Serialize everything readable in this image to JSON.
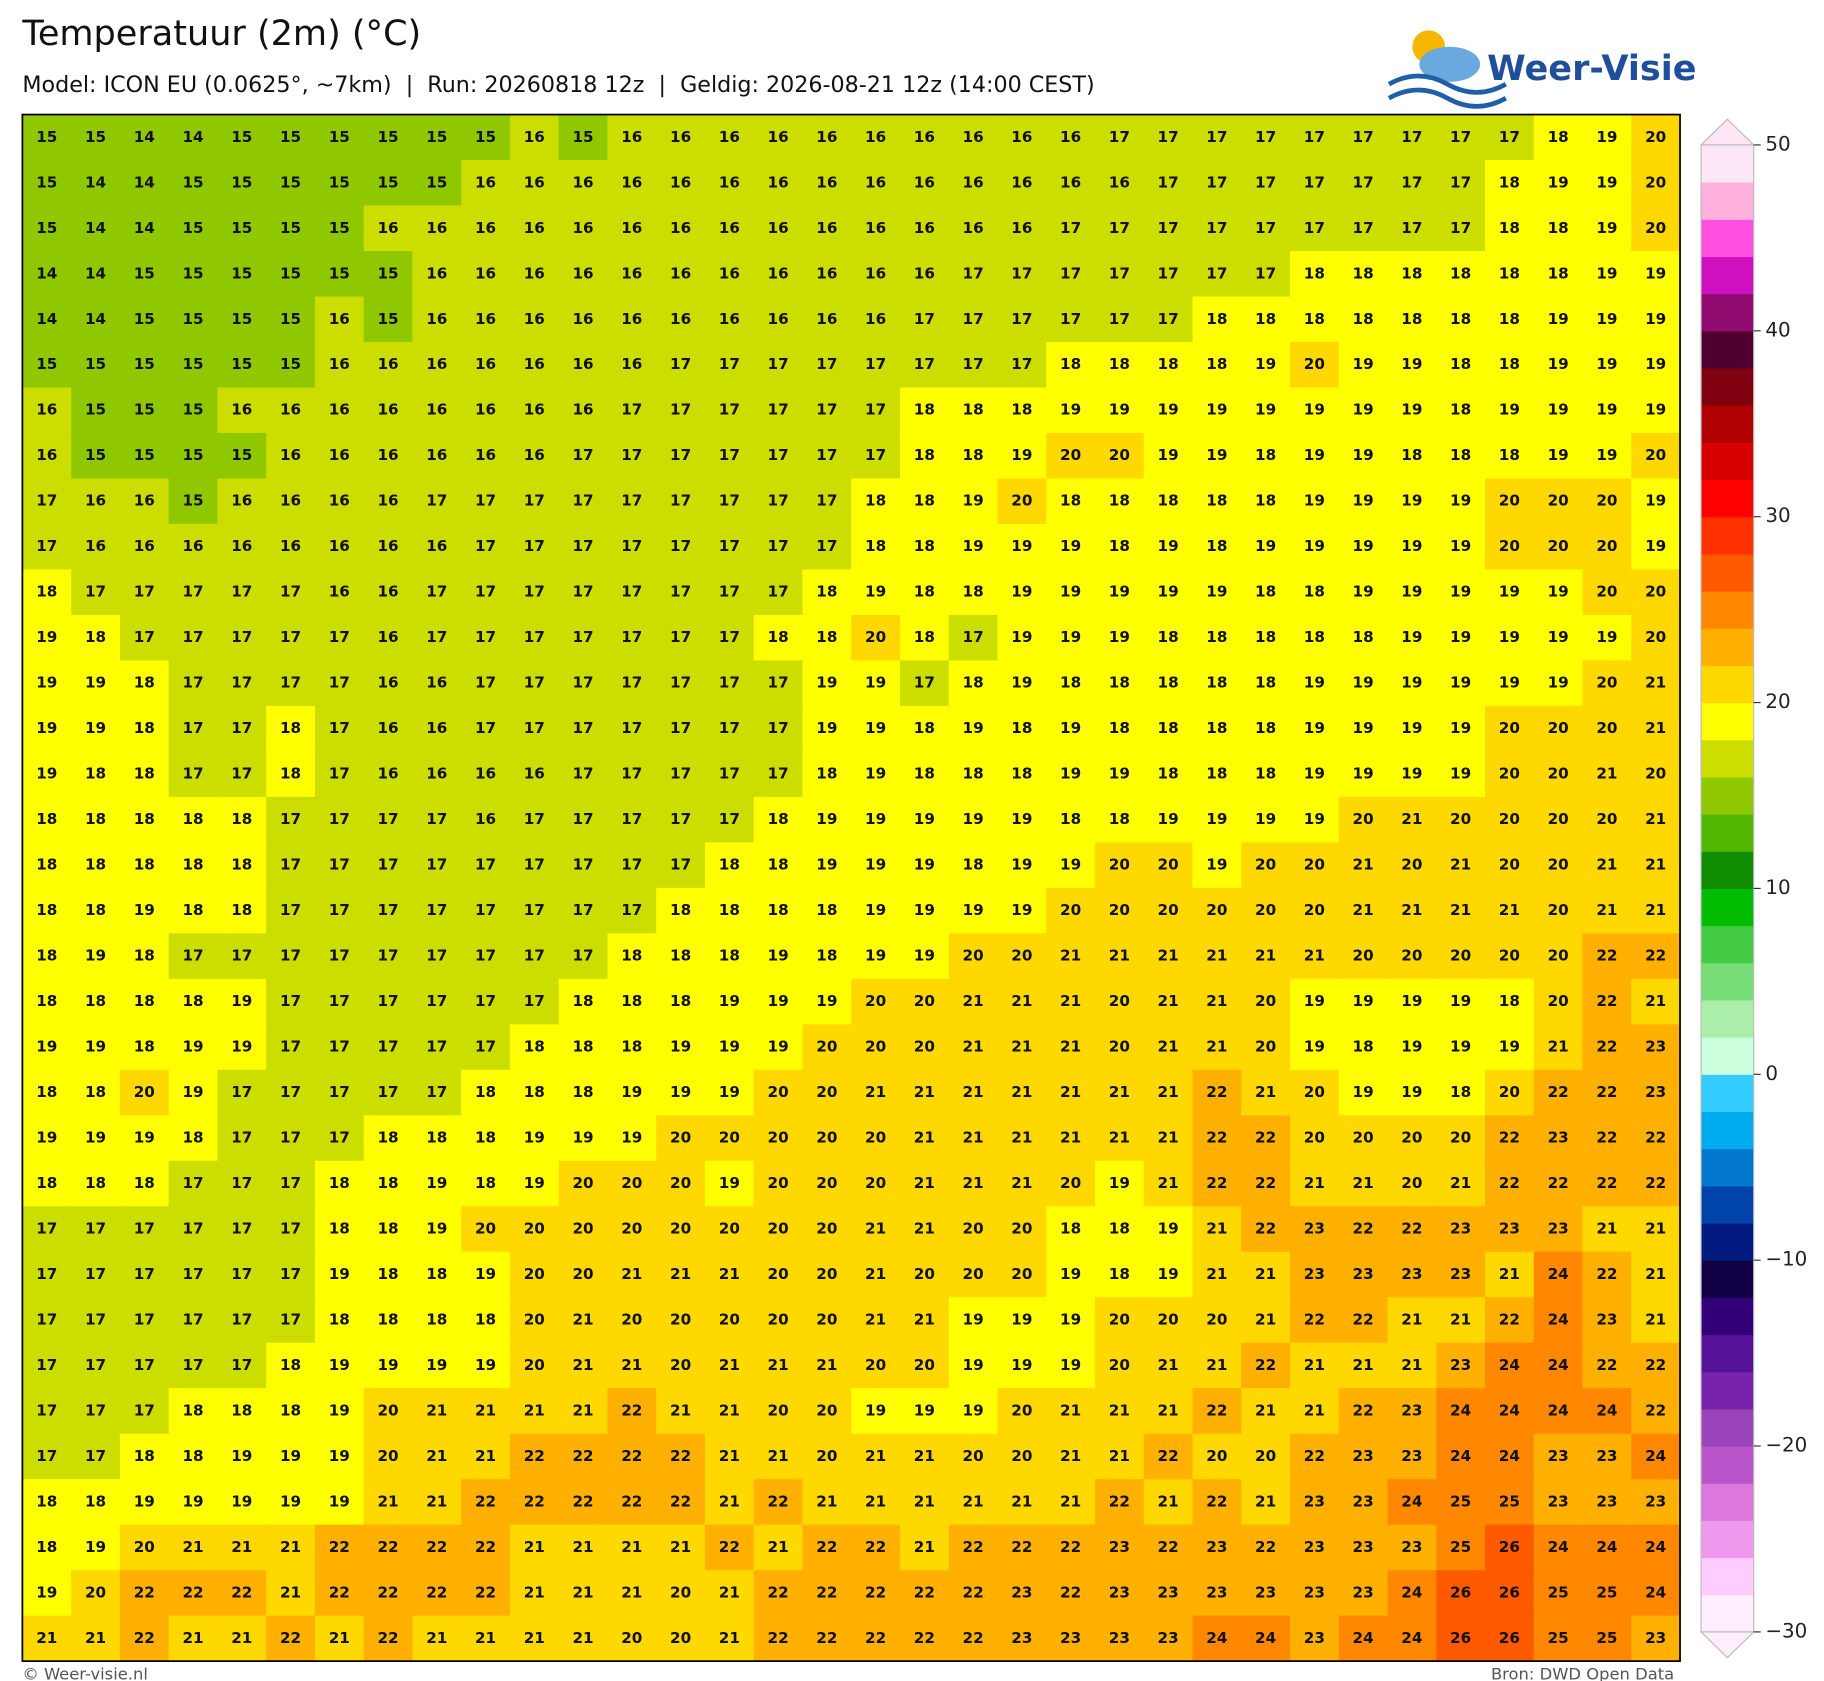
{
  "title": "Temperatuur (2m) (°C)",
  "subtitle": "Model: ICON EU (0.0625°, ~7km)  |  Run: 20260818 12z  |  Geldig: 2026-08-21 12z (14:00 CEST)",
  "logo": "Weer-Visie",
  "footer_left": "© Weer-visie.nl",
  "footer_right": "Bron: DWD Open Data",
  "map": {
    "rows": [
      [
        15,
        15,
        14,
        14,
        15,
        15,
        15,
        15,
        15,
        15,
        16,
        15,
        16,
        16,
        16,
        16,
        16,
        16,
        16,
        16,
        16,
        16,
        17,
        17,
        17,
        17,
        17,
        17,
        17,
        17,
        17,
        18,
        19,
        20
      ],
      [
        15,
        14,
        14,
        15,
        15,
        15,
        15,
        15,
        15,
        16,
        16,
        16,
        16,
        16,
        16,
        16,
        16,
        16,
        16,
        16,
        16,
        16,
        16,
        17,
        17,
        17,
        17,
        17,
        17,
        17,
        18,
        19,
        19,
        20
      ],
      [
        15,
        14,
        14,
        15,
        15,
        15,
        15,
        16,
        16,
        16,
        16,
        16,
        16,
        16,
        16,
        16,
        16,
        16,
        16,
        16,
        16,
        17,
        17,
        17,
        17,
        17,
        17,
        17,
        17,
        17,
        18,
        18,
        19,
        20
      ],
      [
        14,
        14,
        15,
        15,
        15,
        15,
        15,
        15,
        16,
        16,
        16,
        16,
        16,
        16,
        16,
        16,
        16,
        16,
        16,
        17,
        17,
        17,
        17,
        17,
        17,
        17,
        18,
        18,
        18,
        18,
        18,
        18,
        19,
        19
      ],
      [
        14,
        14,
        15,
        15,
        15,
        15,
        16,
        15,
        16,
        16,
        16,
        16,
        16,
        16,
        16,
        16,
        16,
        16,
        17,
        17,
        17,
        17,
        17,
        17,
        18,
        18,
        18,
        18,
        18,
        18,
        18,
        19,
        19,
        19
      ],
      [
        15,
        15,
        15,
        15,
        15,
        15,
        16,
        16,
        16,
        16,
        16,
        16,
        16,
        17,
        17,
        17,
        17,
        17,
        17,
        17,
        17,
        18,
        18,
        18,
        18,
        19,
        20,
        19,
        19,
        18,
        18,
        19,
        19,
        19
      ],
      [
        16,
        15,
        15,
        15,
        16,
        16,
        16,
        16,
        16,
        16,
        16,
        16,
        17,
        17,
        17,
        17,
        17,
        17,
        18,
        18,
        18,
        19,
        19,
        19,
        19,
        19,
        19,
        19,
        19,
        18,
        19,
        19,
        19,
        19
      ],
      [
        16,
        15,
        15,
        15,
        15,
        16,
        16,
        16,
        16,
        16,
        16,
        17,
        17,
        17,
        17,
        17,
        17,
        17,
        18,
        18,
        19,
        20,
        20,
        19,
        19,
        18,
        19,
        19,
        18,
        18,
        18,
        19,
        19,
        20
      ],
      [
        17,
        16,
        16,
        15,
        16,
        16,
        16,
        16,
        17,
        17,
        17,
        17,
        17,
        17,
        17,
        17,
        17,
        18,
        18,
        19,
        20,
        18,
        18,
        18,
        18,
        18,
        19,
        19,
        19,
        19,
        20,
        20,
        20,
        19
      ],
      [
        17,
        16,
        16,
        16,
        16,
        16,
        16,
        16,
        16,
        17,
        17,
        17,
        17,
        17,
        17,
        17,
        17,
        18,
        18,
        19,
        19,
        19,
        18,
        19,
        18,
        19,
        19,
        19,
        19,
        19,
        20,
        20,
        20,
        19
      ],
      [
        18,
        17,
        17,
        17,
        17,
        17,
        16,
        16,
        17,
        17,
        17,
        17,
        17,
        17,
        17,
        17,
        18,
        19,
        18,
        18,
        19,
        19,
        19,
        19,
        19,
        18,
        18,
        19,
        19,
        19,
        19,
        19,
        20,
        20
      ],
      [
        19,
        18,
        17,
        17,
        17,
        17,
        17,
        16,
        17,
        17,
        17,
        17,
        17,
        17,
        17,
        18,
        18,
        20,
        18,
        17,
        19,
        19,
        19,
        18,
        18,
        18,
        18,
        18,
        19,
        19,
        19,
        19,
        19,
        20
      ],
      [
        19,
        19,
        18,
        17,
        17,
        17,
        17,
        16,
        16,
        17,
        17,
        17,
        17,
        17,
        17,
        17,
        19,
        19,
        17,
        18,
        19,
        18,
        18,
        18,
        18,
        18,
        19,
        19,
        19,
        19,
        19,
        19,
        20,
        21
      ],
      [
        19,
        19,
        18,
        17,
        17,
        18,
        17,
        16,
        16,
        17,
        17,
        17,
        17,
        17,
        17,
        17,
        19,
        19,
        18,
        19,
        18,
        19,
        18,
        18,
        18,
        18,
        19,
        19,
        19,
        19,
        20,
        20,
        20,
        21
      ],
      [
        19,
        18,
        18,
        17,
        17,
        18,
        17,
        16,
        16,
        16,
        16,
        17,
        17,
        17,
        17,
        17,
        18,
        19,
        18,
        18,
        18,
        19,
        19,
        18,
        18,
        18,
        19,
        19,
        19,
        19,
        20,
        20,
        21,
        20
      ],
      [
        18,
        18,
        18,
        18,
        18,
        17,
        17,
        17,
        17,
        16,
        17,
        17,
        17,
        17,
        17,
        18,
        19,
        19,
        19,
        19,
        19,
        18,
        18,
        19,
        19,
        19,
        19,
        20,
        21,
        20,
        20,
        20,
        20,
        21
      ],
      [
        18,
        18,
        18,
        18,
        18,
        17,
        17,
        17,
        17,
        17,
        17,
        17,
        17,
        17,
        18,
        18,
        19,
        19,
        19,
        18,
        19,
        19,
        20,
        20,
        19,
        20,
        20,
        21,
        20,
        21,
        20,
        20,
        21,
        21
      ],
      [
        18,
        18,
        19,
        18,
        18,
        17,
        17,
        17,
        17,
        17,
        17,
        17,
        17,
        18,
        18,
        18,
        18,
        19,
        19,
        19,
        19,
        20,
        20,
        20,
        20,
        20,
        20,
        21,
        21,
        21,
        21,
        20,
        21,
        21
      ],
      [
        18,
        19,
        18,
        17,
        17,
        17,
        17,
        17,
        17,
        17,
        17,
        17,
        18,
        18,
        18,
        19,
        18,
        19,
        19,
        20,
        20,
        21,
        21,
        21,
        21,
        21,
        21,
        20,
        20,
        20,
        20,
        20,
        22,
        22
      ],
      [
        18,
        18,
        18,
        18,
        19,
        17,
        17,
        17,
        17,
        17,
        17,
        18,
        18,
        18,
        19,
        19,
        19,
        20,
        20,
        21,
        21,
        21,
        20,
        21,
        21,
        20,
        19,
        19,
        19,
        19,
        18,
        20,
        22,
        21
      ],
      [
        19,
        19,
        18,
        19,
        19,
        17,
        17,
        17,
        17,
        17,
        18,
        18,
        18,
        19,
        19,
        19,
        20,
        20,
        20,
        21,
        21,
        21,
        20,
        21,
        21,
        20,
        19,
        18,
        19,
        19,
        19,
        21,
        22,
        23
      ],
      [
        18,
        18,
        20,
        19,
        17,
        17,
        17,
        17,
        17,
        18,
        18,
        18,
        19,
        19,
        19,
        20,
        20,
        21,
        21,
        21,
        21,
        21,
        21,
        21,
        22,
        21,
        20,
        19,
        19,
        18,
        20,
        22,
        22,
        23
      ],
      [
        19,
        19,
        19,
        18,
        17,
        17,
        17,
        18,
        18,
        18,
        19,
        19,
        19,
        20,
        20,
        20,
        20,
        20,
        21,
        21,
        21,
        21,
        21,
        21,
        22,
        22,
        20,
        20,
        20,
        20,
        22,
        23,
        22,
        22
      ],
      [
        18,
        18,
        18,
        17,
        17,
        17,
        18,
        18,
        19,
        18,
        19,
        20,
        20,
        20,
        19,
        20,
        20,
        20,
        21,
        21,
        21,
        20,
        19,
        21,
        22,
        22,
        21,
        21,
        20,
        21,
        22,
        22,
        22,
        22
      ],
      [
        17,
        17,
        17,
        17,
        17,
        17,
        18,
        18,
        19,
        20,
        20,
        20,
        20,
        20,
        20,
        20,
        20,
        21,
        21,
        20,
        20,
        18,
        18,
        19,
        21,
        22,
        23,
        22,
        22,
        23,
        23,
        23,
        21,
        21
      ],
      [
        17,
        17,
        17,
        17,
        17,
        17,
        19,
        18,
        18,
        19,
        20,
        20,
        21,
        21,
        21,
        20,
        20,
        21,
        20,
        20,
        20,
        19,
        18,
        19,
        21,
        21,
        23,
        23,
        23,
        23,
        21,
        24,
        22,
        21
      ],
      [
        17,
        17,
        17,
        17,
        17,
        17,
        18,
        18,
        18,
        18,
        20,
        21,
        20,
        20,
        20,
        20,
        20,
        21,
        21,
        19,
        19,
        19,
        20,
        20,
        20,
        21,
        22,
        22,
        21,
        21,
        22,
        24,
        23,
        21
      ],
      [
        17,
        17,
        17,
        17,
        17,
        18,
        19,
        19,
        19,
        19,
        20,
        21,
        21,
        20,
        21,
        21,
        21,
        20,
        20,
        19,
        19,
        19,
        20,
        21,
        21,
        22,
        21,
        21,
        21,
        23,
        24,
        24,
        22,
        22
      ],
      [
        17,
        17,
        17,
        18,
        18,
        18,
        19,
        20,
        21,
        21,
        21,
        21,
        22,
        21,
        21,
        20,
        20,
        19,
        19,
        19,
        20,
        21,
        21,
        21,
        22,
        21,
        21,
        22,
        23,
        24,
        24,
        24,
        24,
        22
      ],
      [
        17,
        17,
        18,
        18,
        19,
        19,
        19,
        20,
        21,
        21,
        22,
        22,
        22,
        22,
        21,
        21,
        20,
        21,
        21,
        20,
        20,
        21,
        21,
        22,
        20,
        20,
        22,
        23,
        23,
        24,
        24,
        23,
        23,
        24
      ],
      [
        18,
        18,
        19,
        19,
        19,
        19,
        19,
        21,
        21,
        22,
        22,
        22,
        22,
        22,
        21,
        22,
        21,
        21,
        21,
        21,
        21,
        21,
        22,
        21,
        22,
        21,
        23,
        23,
        24,
        25,
        25,
        23,
        23,
        23
      ],
      [
        18,
        19,
        20,
        21,
        21,
        21,
        22,
        22,
        22,
        22,
        21,
        21,
        21,
        21,
        22,
        21,
        22,
        22,
        21,
        22,
        22,
        22,
        23,
        22,
        23,
        22,
        23,
        23,
        23,
        25,
        26,
        24,
        24,
        24
      ],
      [
        19,
        20,
        22,
        22,
        22,
        21,
        22,
        22,
        22,
        22,
        21,
        21,
        21,
        20,
        21,
        22,
        22,
        22,
        22,
        22,
        23,
        22,
        23,
        23,
        23,
        23,
        23,
        23,
        24,
        26,
        26,
        25,
        25,
        24
      ],
      [
        21,
        21,
        22,
        21,
        21,
        22,
        21,
        22,
        21,
        21,
        21,
        21,
        20,
        20,
        21,
        22,
        22,
        22,
        22,
        22,
        23,
        23,
        23,
        23,
        24,
        24,
        23,
        24,
        24,
        26,
        26,
        25,
        25,
        23
      ]
    ]
  },
  "colorbar": {
    "lim": [
      -30,
      50
    ],
    "ticks": [
      {
        "value": -30,
        "label": "−30"
      },
      {
        "value": -20,
        "label": "−20"
      },
      {
        "value": -10,
        "label": "−10"
      },
      0,
      10,
      20,
      30,
      40,
      50
    ],
    "colors": [
      "#ffeeff",
      "#ffccff",
      "#ee99ee",
      "#dd77dd",
      "#bb55cc",
      "#9944bb",
      "#7722aa",
      "#551199",
      "#330077",
      "#110044",
      "#001a80",
      "#0044aa",
      "#0077cc",
      "#00aaee",
      "#33ccff",
      "#ccffdd",
      "#aaeeaa",
      "#77dd77",
      "#44cc44",
      "#00bb00",
      "#108c00",
      "#50b800",
      "#90c800",
      "#ccdd00",
      "#ffff00",
      "#ffd800",
      "#ffb000",
      "#ff8800",
      "#ff5a00",
      "#ff3000",
      "#ff0000",
      "#d80000",
      "#b00000",
      "#800010",
      "#500030",
      "#900a70",
      "#d00fc0",
      "#ff50e0",
      "#ffb0dc",
      "#fde6f6"
    ]
  }
}
